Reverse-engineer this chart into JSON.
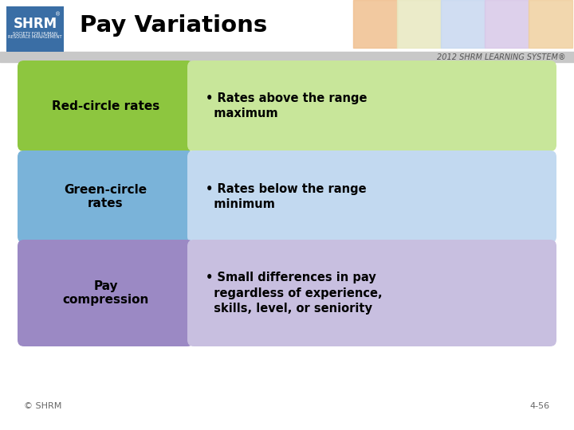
{
  "title": "Pay Variations",
  "background_color": "#ffffff",
  "subtitle": "2012 SHRM LEARNING SYSTEM®",
  "footer_left": "© SHRM",
  "footer_right": "4-56",
  "rows": [
    {
      "label": "Red-circle rates",
      "description": "• Rates above the range\n  maximum",
      "label_bg": "#8dc63f",
      "desc_bg": "#c8e69a",
      "label_color": "#000000",
      "desc_color": "#000000"
    },
    {
      "label": "Green-circle\nrates",
      "description": "• Rates below the range\n  minimum",
      "label_bg": "#7ab3d9",
      "desc_bg": "#c2d9f0",
      "label_color": "#000000",
      "desc_color": "#000000"
    },
    {
      "label": "Pay\ncompression",
      "description": "• Small differences in pay\n  regardless of experience,\n  skills, level, or seniority",
      "label_bg": "#9b89c4",
      "desc_bg": "#c8bfe0",
      "label_color": "#000000",
      "desc_color": "#000000"
    }
  ],
  "header": {
    "bg_color": "#f0f0f0",
    "logo_bg": "#3a6ea5",
    "logo_text_color": "#ffffff",
    "title_color": "#000000",
    "sep_color": "#a0a0a0",
    "subtitle_color": "#555555",
    "deco_colors": [
      "#f0c090",
      "#e8e8c0",
      "#c8d8f0",
      "#d8c8e8",
      "#f0d0a0"
    ]
  }
}
